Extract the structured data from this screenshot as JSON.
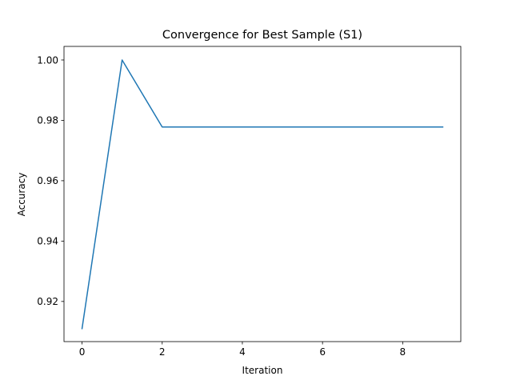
{
  "chart_data": {
    "type": "line",
    "title": "Convergence for Best Sample (S1)",
    "xlabel": "Iteration",
    "ylabel": "Accuracy",
    "xlim": [
      -0.45,
      9.45
    ],
    "ylim": [
      0.9067,
      1.0045
    ],
    "xticks": [
      0,
      2,
      4,
      6,
      8
    ],
    "yticks": [
      0.92,
      0.94,
      0.96,
      0.98,
      1.0
    ],
    "ytick_labels": [
      "0.92",
      "0.94",
      "0.96",
      "0.98",
      "1.00"
    ],
    "grid": false,
    "series": [
      {
        "color": "#1f77b4",
        "x": [
          0,
          1,
          2,
          3,
          4,
          5,
          6,
          7,
          8,
          9
        ],
        "y": [
          0.911,
          1.0,
          0.9778,
          0.9778,
          0.9778,
          0.9778,
          0.9778,
          0.9778,
          0.9778,
          0.9778
        ]
      }
    ]
  }
}
